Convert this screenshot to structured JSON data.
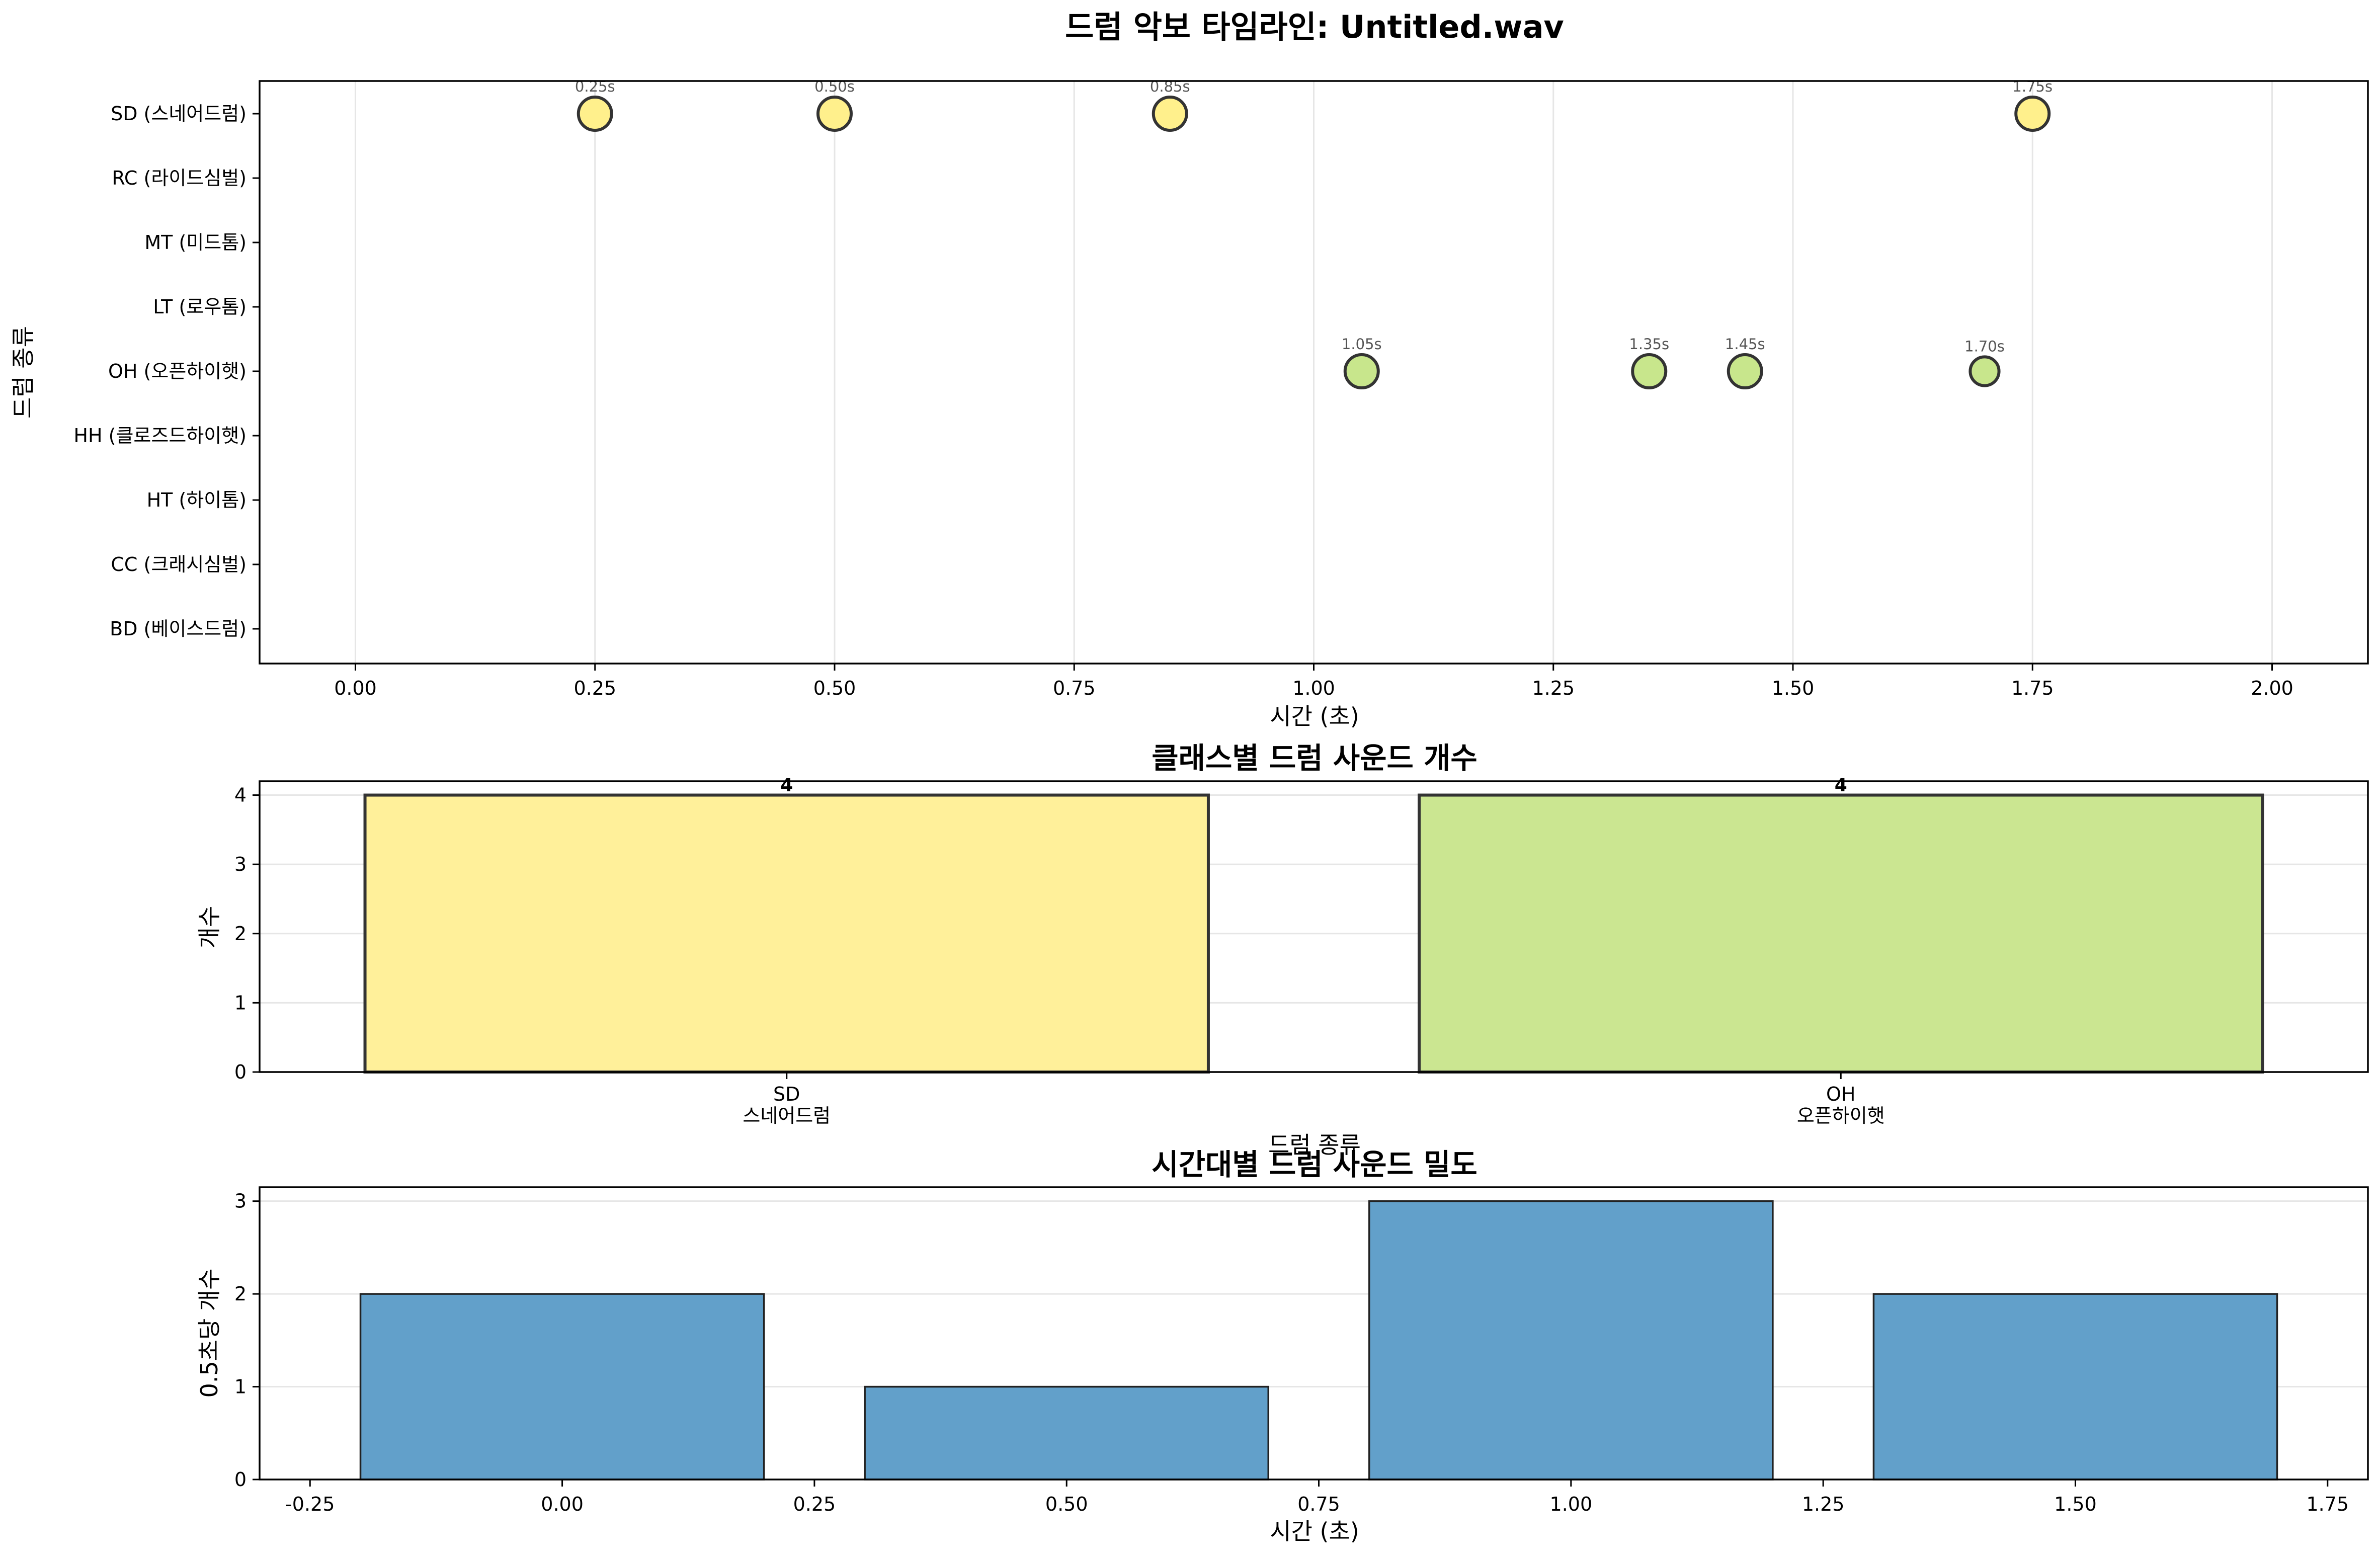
{
  "page_title": "드럼 악보 타임라인: Untitled.wav",
  "chart_data": [
    {
      "type": "scatter",
      "title": "드럼 악보 타임라인: Untitled.wav",
      "xlabel": "시간 (초)",
      "ylabel": "드럼 종류",
      "xlim": [
        -0.1,
        2.1
      ],
      "xticks": [
        "0.00",
        "0.25",
        "0.50",
        "0.75",
        "1.00",
        "1.25",
        "1.50",
        "1.75",
        "2.00"
      ],
      "xtick_values": [
        0,
        0.25,
        0.5,
        0.75,
        1.0,
        1.25,
        1.5,
        1.75,
        2.0
      ],
      "categories": [
        "SD (스네어드럼)",
        "RC (라이드심벌)",
        "MT (미드톰)",
        "LT (로우톰)",
        "OH (오픈하이햇)",
        "HH (클로즈드하이햇)",
        "HT (하이톰)",
        "CC (크래시심벌)",
        "BD (베이스드럼)"
      ],
      "grid": "x",
      "series": [
        {
          "category": "SD (스네어드럼)",
          "color": "#fff08c",
          "points": [
            {
              "x": 0.25,
              "label": "0.25s",
              "size": 1.0
            },
            {
              "x": 0.5,
              "label": "0.50s",
              "size": 1.0
            },
            {
              "x": 0.85,
              "label": "0.85s",
              "size": 1.0
            },
            {
              "x": 1.75,
              "label": "1.75s",
              "size": 1.0
            }
          ]
        },
        {
          "category": "OH (오픈하이햇)",
          "color": "#c8e68c",
          "points": [
            {
              "x": 1.05,
              "label": "1.05s",
              "size": 1.0
            },
            {
              "x": 1.35,
              "label": "1.35s",
              "size": 1.0
            },
            {
              "x": 1.45,
              "label": "1.45s",
              "size": 1.0
            },
            {
              "x": 1.7,
              "label": "1.70s",
              "size": 0.75
            }
          ]
        }
      ]
    },
    {
      "type": "bar",
      "title": "클래스별 드럼 사운드 개수",
      "xlabel": "드럼 종류",
      "ylabel": "개수",
      "categories": [
        [
          "SD",
          "스네어드럼"
        ],
        [
          "OH",
          "오픈하이햇"
        ]
      ],
      "values": [
        4,
        4
      ],
      "colors": [
        "#fff09a",
        "#cbe691"
      ],
      "ylim": [
        0,
        4.2
      ],
      "yticks": [
        0,
        1,
        2,
        3,
        4
      ],
      "grid": "y"
    },
    {
      "type": "bar",
      "title": "시간대별 드럼 사운드 밀도",
      "xlabel": "시간 (초)",
      "ylabel": "0.5초당 개수",
      "x": [
        0.0,
        0.5,
        1.0,
        1.5
      ],
      "values": [
        2,
        1,
        3,
        2
      ],
      "bar_width": 0.4,
      "color": "#62a0ca",
      "xlim": [
        -0.3,
        1.79
      ],
      "xticks": [
        "-0.25",
        "0.00",
        "0.25",
        "0.50",
        "0.75",
        "1.00",
        "1.25",
        "1.50",
        "1.75"
      ],
      "xtick_values": [
        -0.25,
        0,
        0.25,
        0.5,
        0.75,
        1.0,
        1.25,
        1.5,
        1.75
      ],
      "ylim": [
        0,
        3.15
      ],
      "yticks": [
        0,
        1,
        2,
        3
      ],
      "grid": "y"
    }
  ]
}
